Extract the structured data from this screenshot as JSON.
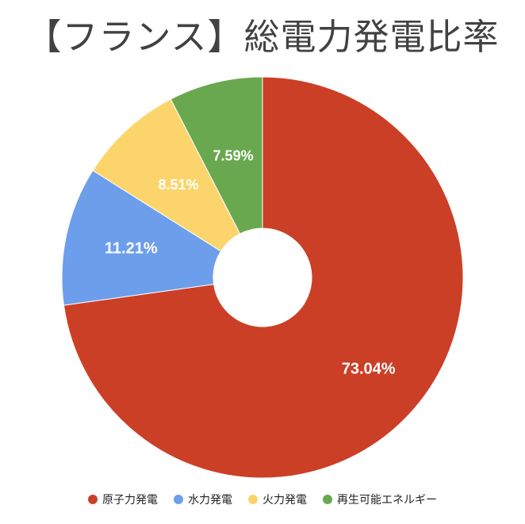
{
  "chart_data": {
    "type": "pie",
    "title": "【フランス】総電力発電比率",
    "categories": [
      "原子力発電",
      "水力発電",
      "火力発電",
      "再生可能エネルギー"
    ],
    "values": [
      73.04,
      11.21,
      8.51,
      7.59
    ],
    "labels": [
      "73.04%",
      "11.21%",
      "8.51%",
      "7.59%"
    ],
    "colors": [
      "#cc3f27",
      "#6d9eeb",
      "#fbd56b",
      "#6aa84f"
    ],
    "donut": true,
    "legend_position": "bottom"
  }
}
